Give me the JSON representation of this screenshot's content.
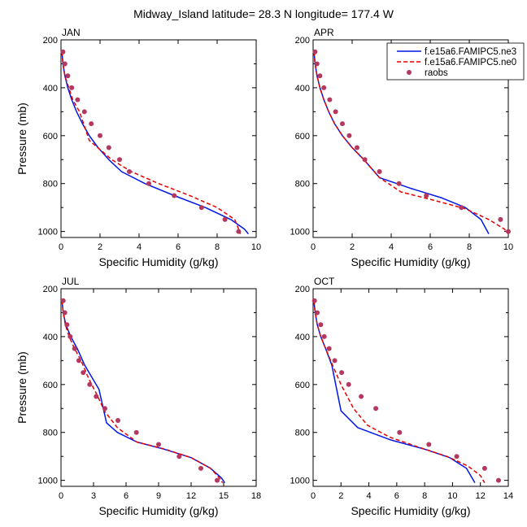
{
  "title": "Midway_Island  latitude= 28.3 N longitude= 177.4 W",
  "colors": {
    "series1": "#0018e6",
    "series2": "#e60000",
    "obs": "#b5385e"
  },
  "legend": {
    "items": [
      {
        "label": "f.e15a6.FAMIPC5.ne3",
        "style": "solid"
      },
      {
        "label": "f.e15a6.FAMIPC5.ne0",
        "style": "dashed"
      },
      {
        "label": "raobs",
        "style": "marker"
      }
    ]
  },
  "chart_data": [
    {
      "type": "line",
      "panel": "JAN",
      "xlabel": "Specific Humidity (g/kg)",
      "ylabel": "Pressure (mb)",
      "xlim": [
        0,
        10
      ],
      "ylim": [
        200,
        1025
      ],
      "y_inverted": true,
      "xticks": [
        0,
        2,
        4,
        6,
        8,
        10
      ],
      "yticks": [
        200,
        400,
        600,
        800,
        1000
      ],
      "series": [
        {
          "name": "f.e15a6.FAMIPC5.ne3",
          "kind": "line",
          "x": [
            0.05,
            0.1,
            0.2,
            0.35,
            0.55,
            0.8,
            1.1,
            1.45,
            1.9,
            2.45,
            3.1,
            4.3,
            5.8,
            7.4,
            8.7,
            9.4,
            9.6
          ],
          "y": [
            250,
            300,
            350,
            400,
            450,
            500,
            550,
            600,
            650,
            700,
            750,
            800,
            850,
            900,
            950,
            990,
            1010
          ]
        },
        {
          "name": "f.e15a6.FAMIPC5.ne0",
          "kind": "line",
          "x": [
            0.05,
            0.1,
            0.2,
            0.4,
            0.6,
            0.95,
            1.45,
            2.6,
            3.6,
            5.0,
            6.6,
            8.0,
            8.9,
            9.2
          ],
          "y": [
            250,
            300,
            350,
            400,
            450,
            500,
            620,
            700,
            750,
            800,
            850,
            900,
            950,
            1010
          ]
        },
        {
          "name": "raobs",
          "kind": "marker",
          "x": [
            0.1,
            0.2,
            0.35,
            0.55,
            0.85,
            1.2,
            1.55,
            2.0,
            2.45,
            3.0,
            3.5,
            4.5,
            5.8,
            7.2,
            8.4,
            9.1
          ],
          "y": [
            250,
            300,
            350,
            400,
            450,
            500,
            550,
            600,
            650,
            700,
            750,
            800,
            850,
            900,
            950,
            1000
          ]
        }
      ]
    },
    {
      "type": "line",
      "panel": "APR",
      "xlabel": "Specific Humidity (g/kg)",
      "ylabel": "",
      "xlim": [
        0,
        10
      ],
      "ylim": [
        200,
        1025
      ],
      "y_inverted": true,
      "xticks": [
        0,
        2,
        4,
        6,
        8,
        10
      ],
      "yticks": [
        200,
        400,
        600,
        800,
        1000
      ],
      "series": [
        {
          "name": "f.e15a6.FAMIPC5.ne3",
          "kind": "line",
          "x": [
            0.05,
            0.1,
            0.2,
            0.35,
            0.55,
            0.8,
            1.1,
            1.5,
            2.0,
            2.6,
            3.4,
            5.0,
            6.6,
            7.8,
            8.6,
            9.0
          ],
          "y": [
            250,
            300,
            350,
            400,
            450,
            500,
            550,
            600,
            650,
            700,
            775,
            820,
            860,
            900,
            950,
            1010
          ]
        },
        {
          "name": "f.e15a6.FAMIPC5.ne0",
          "kind": "line",
          "x": [
            0.05,
            0.1,
            0.2,
            0.35,
            0.55,
            0.8,
            1.1,
            1.5,
            2.0,
            2.6,
            3.4,
            4.5,
            6.2,
            7.8,
            9.0,
            9.8,
            10.0
          ],
          "y": [
            250,
            300,
            350,
            400,
            450,
            500,
            550,
            600,
            650,
            700,
            775,
            835,
            870,
            905,
            950,
            990,
            1010
          ]
        },
        {
          "name": "raobs",
          "kind": "marker",
          "x": [
            0.1,
            0.2,
            0.35,
            0.55,
            0.85,
            1.15,
            1.5,
            1.85,
            2.25,
            2.65,
            3.4,
            4.4,
            5.8,
            7.6,
            9.6,
            10.0
          ],
          "y": [
            250,
            300,
            350,
            400,
            450,
            500,
            550,
            600,
            650,
            700,
            750,
            800,
            850,
            900,
            950,
            1000
          ]
        }
      ]
    },
    {
      "type": "line",
      "panel": "JUL",
      "xlabel": "Specific Humidity (g/kg)",
      "ylabel": "Pressure (mb)",
      "xlim": [
        0,
        18
      ],
      "ylim": [
        200,
        1025
      ],
      "y_inverted": true,
      "xticks": [
        0,
        3,
        6,
        9,
        12,
        15,
        18
      ],
      "yticks": [
        200,
        400,
        600,
        800,
        1000
      ],
      "series": [
        {
          "name": "f.e15a6.FAMIPC5.ne3",
          "kind": "line",
          "x": [
            0.1,
            0.2,
            0.45,
            0.9,
            1.5,
            2.2,
            3.5,
            4.2,
            5.2,
            7.0,
            9.5,
            12.0,
            13.8,
            14.8,
            15.1
          ],
          "y": [
            250,
            300,
            350,
            400,
            450,
            520,
            620,
            760,
            800,
            840,
            870,
            905,
            950,
            990,
            1010
          ]
        },
        {
          "name": "f.e15a6.FAMIPC5.ne0",
          "kind": "line",
          "x": [
            0.1,
            0.2,
            0.4,
            0.75,
            1.25,
            1.85,
            2.6,
            3.4,
            4.0,
            5.2,
            7.0,
            9.6,
            12.0,
            13.8,
            14.6,
            14.9
          ],
          "y": [
            250,
            300,
            350,
            400,
            450,
            500,
            580,
            650,
            710,
            780,
            840,
            870,
            905,
            950,
            990,
            1010
          ]
        },
        {
          "name": "raobs",
          "kind": "marker",
          "x": [
            0.2,
            0.35,
            0.55,
            0.85,
            1.25,
            1.65,
            2.05,
            2.65,
            3.25,
            4.05,
            5.25,
            6.95,
            9.0,
            10.9,
            12.9,
            14.4
          ],
          "y": [
            250,
            300,
            350,
            400,
            450,
            500,
            550,
            600,
            650,
            700,
            750,
            800,
            850,
            900,
            950,
            1000
          ]
        }
      ]
    },
    {
      "type": "line",
      "panel": "OCT",
      "xlabel": "Specific Humidity (g/kg)",
      "ylabel": "",
      "xlim": [
        0,
        14
      ],
      "ylim": [
        200,
        1025
      ],
      "y_inverted": true,
      "xticks": [
        0,
        2,
        4,
        6,
        8,
        10,
        12,
        14
      ],
      "yticks": [
        200,
        400,
        600,
        800,
        1000
      ],
      "series": [
        {
          "name": "f.e15a6.FAMIPC5.ne3",
          "kind": "line",
          "x": [
            0.05,
            0.15,
            0.3,
            0.55,
            0.9,
            1.35,
            2.0,
            3.2,
            5.5,
            8.0,
            9.8,
            11.0,
            11.6
          ],
          "y": [
            250,
            300,
            350,
            400,
            450,
            520,
            710,
            780,
            830,
            870,
            905,
            950,
            1010
          ]
        },
        {
          "name": "f.e15a6.FAMIPC5.ne0",
          "kind": "line",
          "x": [
            0.05,
            0.15,
            0.3,
            0.55,
            0.9,
            1.4,
            2.0,
            2.9,
            3.9,
            5.5,
            7.5,
            9.6,
            11.1,
            12.0,
            12.3
          ],
          "y": [
            250,
            300,
            350,
            400,
            450,
            520,
            600,
            700,
            770,
            820,
            860,
            900,
            940,
            980,
            1010
          ]
        },
        {
          "name": "raobs",
          "kind": "marker",
          "x": [
            0.1,
            0.3,
            0.55,
            0.8,
            1.15,
            1.55,
            2.05,
            2.55,
            3.45,
            4.5,
            6.2,
            8.3,
            10.3,
            12.3,
            13.3
          ],
          "y": [
            250,
            300,
            350,
            400,
            450,
            500,
            550,
            600,
            650,
            700,
            800,
            850,
            900,
            950,
            1000
          ]
        }
      ]
    }
  ]
}
